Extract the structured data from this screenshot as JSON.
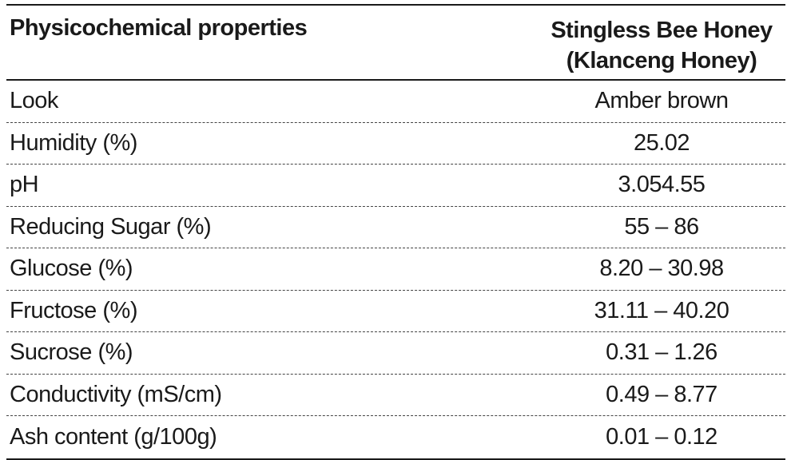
{
  "table": {
    "header": {
      "property_col": "Physicochemical properties",
      "value_col_line1": "Stingless Bee Honey",
      "value_col_line2": "(Klanceng Honey)"
    },
    "rows": [
      {
        "property": "Look",
        "value": "Amber brown"
      },
      {
        "property": "Humidity (%)",
        "value": "25.02"
      },
      {
        "property": "pH",
        "value": "3.054.55"
      },
      {
        "property": "Reducing Sugar (%)",
        "value": "55 – 86"
      },
      {
        "property": "Glucose (%)",
        "value": "8.20 – 30.98"
      },
      {
        "property": "Fructose (%)",
        "value": "31.11 – 40.20"
      },
      {
        "property": "Sucrose (%)",
        "value": "0.31 – 1.26"
      },
      {
        "property": "Conductivity (mS/cm)",
        "value": "0.49 – 8.77"
      },
      {
        "property": "Ash content (g/100g)",
        "value": "0.01 – 0.12"
      }
    ]
  }
}
